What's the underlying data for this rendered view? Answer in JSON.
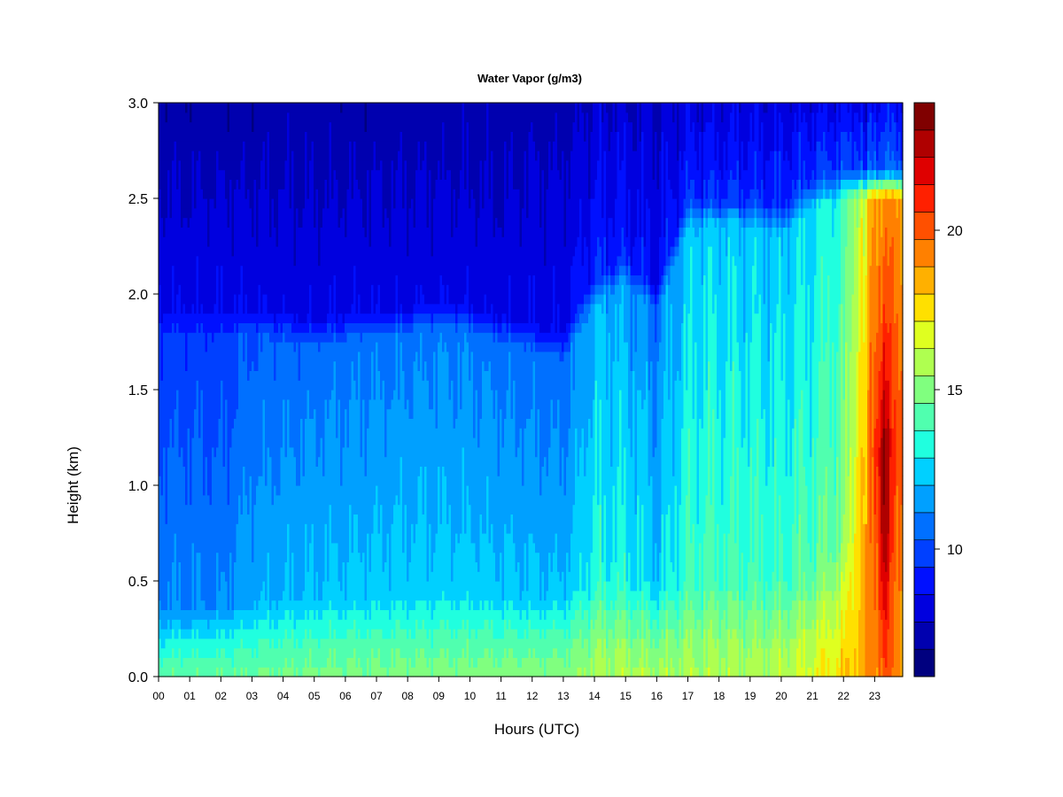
{
  "chart_data": {
    "type": "heatmap",
    "title": "Water Vapor (g/m3)",
    "xlabel": "Hours (UTC)",
    "ylabel": "Height (km)",
    "x_ticks": [
      "00",
      "01",
      "02",
      "03",
      "04",
      "05",
      "06",
      "07",
      "08",
      "09",
      "10",
      "11",
      "12",
      "13",
      "14",
      "15",
      "16",
      "17",
      "18",
      "19",
      "20",
      "21",
      "22",
      "23"
    ],
    "xlim": [
      0,
      23.9
    ],
    "y_ticks": [
      "0.0",
      "0.5",
      "1.0",
      "1.5",
      "2.0",
      "2.5",
      "3.0"
    ],
    "ylim": [
      0,
      3.0
    ],
    "colorbar": {
      "range": [
        6,
        24
      ],
      "step": 1,
      "ticks": [
        "10",
        "15",
        "20"
      ],
      "colors": [
        "#00007f",
        "#0000af",
        "#0000df",
        "#0010ff",
        "#0040ff",
        "#0070ff",
        "#00a0ff",
        "#00d0ff",
        "#20ffdf",
        "#50ffaf",
        "#80ff7f",
        "#afff50",
        "#dfff20",
        "#ffe000",
        "#ffb000",
        "#ff8000",
        "#ff5000",
        "#ff2000",
        "#df0000",
        "#af0000",
        "#800000"
      ]
    },
    "moisture_layers": {
      "hours": [
        0,
        1,
        2,
        3,
        4,
        5,
        6,
        7,
        8,
        9,
        10,
        11,
        12,
        13,
        14,
        15,
        16,
        17,
        18,
        19,
        20,
        21,
        22,
        23
      ],
      "sfc_value": [
        15.8,
        15.8,
        15.9,
        16,
        16.1,
        16.2,
        16.3,
        16.3,
        16.4,
        16.4,
        16.4,
        16.5,
        16.5,
        16.6,
        17.3,
        17.4,
        17.2,
        17.4,
        17.5,
        17.4,
        17.6,
        18.5,
        19.5,
        21.5
      ],
      "h_top_moist_km": [
        0.35,
        0.36,
        0.37,
        0.39,
        0.41,
        0.42,
        0.42,
        0.43,
        0.43,
        0.45,
        0.44,
        0.43,
        0.43,
        0.44,
        0.5,
        0.5,
        0.48,
        0.5,
        0.52,
        0.5,
        0.5,
        0.55,
        0.7,
        1.2
      ],
      "mid_value": [
        10.8,
        10.9,
        10.8,
        11.6,
        11.8,
        12.0,
        12.1,
        12.2,
        12.3,
        12.3,
        12.3,
        12.1,
        12.0,
        11.9,
        13.3,
        13.2,
        12.2,
        13.8,
        14.0,
        13.9,
        13.8,
        14.4,
        15.3,
        21.8
      ],
      "h_mid_top_km": [
        1.78,
        1.78,
        1.77,
        1.78,
        1.75,
        1.72,
        1.75,
        1.77,
        1.78,
        1.82,
        1.78,
        1.75,
        1.7,
        1.65,
        1.95,
        2.05,
        1.9,
        2.35,
        2.35,
        2.35,
        2.3,
        2.45,
        2.5,
        2.5
      ],
      "upper_value": [
        8.9,
        8.9,
        8.9,
        8.9,
        8.8,
        8.8,
        8.8,
        8.8,
        8.8,
        8.9,
        8.8,
        8.7,
        8.8,
        8.9,
        9.8,
        9.7,
        9.0,
        10.0,
        10.0,
        10.0,
        10.1,
        10.3,
        10.6,
        11.2
      ],
      "top_value": [
        7.3,
        7.3,
        7.3,
        7.3,
        7.4,
        7.4,
        7.4,
        7.4,
        7.4,
        7.4,
        7.5,
        7.5,
        7.6,
        7.6,
        8.1,
        8.1,
        8.0,
        8.4,
        8.4,
        8.4,
        8.4,
        8.6,
        8.8,
        9.2
      ]
    }
  }
}
